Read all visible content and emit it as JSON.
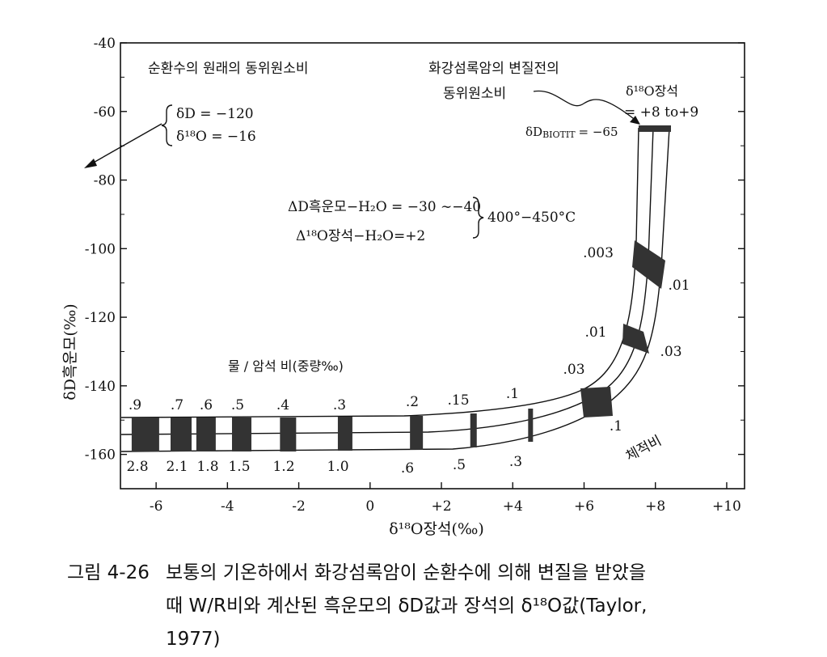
{
  "chart_data": {
    "type": "diagram",
    "xlabel": "δ¹⁸O장석(‰)",
    "ylabel": "δD흑운모(‰)",
    "xlim": [
      -7,
      10.5
    ],
    "ylim": [
      -170,
      -40
    ],
    "x_ticks": [
      -6,
      -4,
      -2,
      0,
      2,
      4,
      6,
      8,
      10
    ],
    "x_tick_labels": [
      "-6",
      "-4",
      "-2",
      "0",
      "+2",
      "+4",
      "+6",
      "+8",
      "+10"
    ],
    "y_ticks": [
      -40,
      -60,
      -80,
      -100,
      -120,
      -140,
      -160
    ],
    "y_tick_labels": [
      "-40",
      "-60",
      "-80",
      "-100",
      "-120",
      "-140",
      "-160"
    ],
    "weight_ratio_label": "물 / 암석  비(중량‰)",
    "volume_ratio_label": "체적비",
    "weight_ratios": [
      {
        "label": ".9",
        "x": -6.3
      },
      {
        "label": ".7",
        "x": -5.3
      },
      {
        "label": ".6",
        "x": -4.6
      },
      {
        "label": ".5",
        "x": -3.6
      },
      {
        "label": ".4",
        "x": -2.3
      },
      {
        "label": ".3",
        "x": -0.7
      },
      {
        "label": ".2",
        "x": 1.3
      },
      {
        "label": ".15",
        "x": 2.9
      },
      {
        "label": ".1",
        "x": 4.5
      },
      {
        "label": ".03",
        "x": 6.9
      },
      {
        "label": ".01",
        "x": 7.8
      },
      {
        "label": ".003",
        "x": 8.2
      }
    ],
    "volume_ratios": [
      {
        "label": "2.8",
        "x": -6.3
      },
      {
        "label": "2.1",
        "x": -5.3
      },
      {
        "label": "1.8",
        "x": -4.6
      },
      {
        "label": "1.5",
        "x": -3.6
      },
      {
        "label": "1.2",
        "x": -2.3
      },
      {
        "label": "1.0",
        "x": -0.7
      },
      {
        "label": ".6",
        "x": 1.3
      },
      {
        "label": ".5",
        "x": 2.9
      },
      {
        "label": ".3",
        "x": 4.5
      },
      {
        "label": ".1",
        "x": 7.0
      },
      {
        "label": ".03",
        "x": 8.8
      },
      {
        "label": ".01",
        "x": 9.2
      }
    ],
    "initial_water": {
      "label": "순환수의 원래의 동위원소비",
      "dD": "δD = −120",
      "d18O": "δ¹⁸O = −16"
    },
    "initial_rock": {
      "label_line1": "화강섬록암의 변질전의",
      "label_line2": "동위원소비",
      "d18O_label": "δ¹⁸O장석",
      "d18O_value": "= +8 to+9",
      "dD_label": "δD",
      "dD_sub": "BIOTIT",
      "dD_value": "= −65",
      "x": [
        8.0,
        9.0
      ],
      "y": -65
    },
    "fractionation": {
      "line1": "ΔD흑운모−H₂O = −30 ∼−40",
      "line2": "Δ¹⁸O장석−H₂O=+2",
      "temperature": "400°−450°C"
    }
  },
  "caption": {
    "label": "그림 4-26",
    "line1": "보통의 기온하에서 화강섬록암이 순환수에 의해 변질을 받았을",
    "line2": "때 W/R비와 계산된 흑운모의 δD값과 장석의 δ¹⁸O값(Taylor,",
    "line3": "1977)"
  }
}
